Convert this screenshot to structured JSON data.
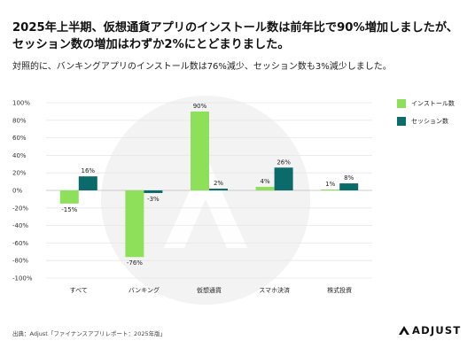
{
  "headline": {
    "line1": "2025年上半期、仮想通貨アプリのインストール数は前年比で90%増加しましたが、",
    "line2": "セッション数の増加はわずか2%にとどまりました。"
  },
  "subheadline": "対照的に、バンキングアプリのインストール数は76%減少、セッション数も3%減少しました。",
  "footer": {
    "source": "出典：Adjust「ファイナンスアプリレポート：2025年版」",
    "logo_text": "ADJUST"
  },
  "colors": {
    "installs": "#8ee05a",
    "sessions": "#0b6b6b",
    "gridline": "#e6e6e6",
    "zero_line": "#bdbdbd",
    "watermark": "#f3f3f3"
  },
  "chart_data": {
    "type": "bar",
    "categories": [
      "すべて",
      "バンキング",
      "仮想通貨",
      "スマホ決済",
      "株式投資"
    ],
    "series": [
      {
        "name": "インストール数",
        "color": "#8ee05a",
        "values": [
          -15,
          -76,
          90,
          4,
          1
        ],
        "labels": [
          "-15%",
          "-76%",
          "90%",
          "4%",
          "1%"
        ]
      },
      {
        "name": "セッション数",
        "color": "#0b6b6b",
        "values": [
          16,
          -3,
          2,
          26,
          8
        ],
        "labels": [
          "16%",
          "-3%",
          "2%",
          "26%",
          "8%"
        ]
      }
    ],
    "ylim": [
      -100,
      100
    ],
    "yticks": [
      100,
      80,
      60,
      40,
      20,
      0,
      -20,
      -40,
      -60,
      -80,
      -100
    ],
    "ytick_labels": [
      "100%",
      "80%",
      "60%",
      "40%",
      "20%",
      "0%",
      "-20%",
      "-40%",
      "-60%",
      "-80%",
      "-100%"
    ],
    "grid": true,
    "legend_position": "right"
  }
}
